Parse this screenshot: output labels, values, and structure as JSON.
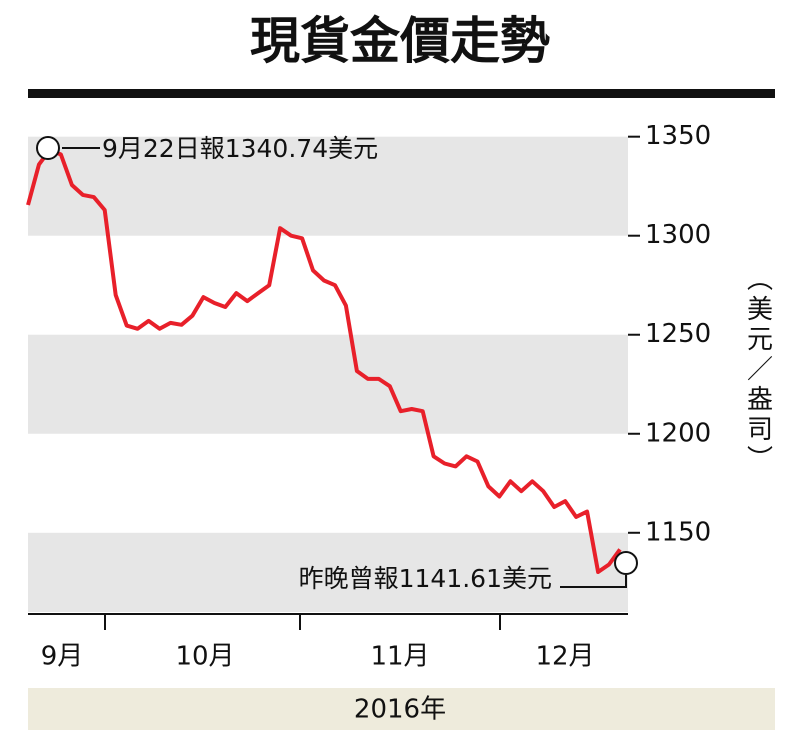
{
  "chart_data": {
    "type": "line",
    "title": "現貨金價走勢",
    "y_axis_label": "（美元／盎司）",
    "x_labels": [
      "9月",
      "10月",
      "11月",
      "12月"
    ],
    "x_axis_label": "2016年",
    "annotations": [
      "9月22日報1340.74美元",
      "昨晚曾報1141.61美元"
    ],
    "color": "#e8202a",
    "values": [
      1315.5,
      1336,
      1343.4,
      1341,
      1325.6,
      1320.6,
      1319.5,
      1313,
      1270,
      1254.6,
      1253,
      1257,
      1253,
      1256,
      1255,
      1259.6,
      1269,
      1266,
      1264,
      1271,
      1267,
      1271,
      1275,
      1303.8,
      1300,
      1298.7,
      1282.5,
      1277.4,
      1275,
      1264.7,
      1231.7,
      1227.7,
      1227.7,
      1224,
      1211.4,
      1212.5,
      1211.4,
      1188.6,
      1185,
      1183.5,
      1188.6,
      1186,
      1173.4,
      1168.3,
      1176,
      1171,
      1176,
      1171,
      1163,
      1166,
      1158,
      1160.7,
      1130.2,
      1134,
      1141.6
    ],
    "ylim": [
      1110,
      1366
    ],
    "yticks": [
      1150,
      1200,
      1250,
      1300,
      1350
    ]
  }
}
